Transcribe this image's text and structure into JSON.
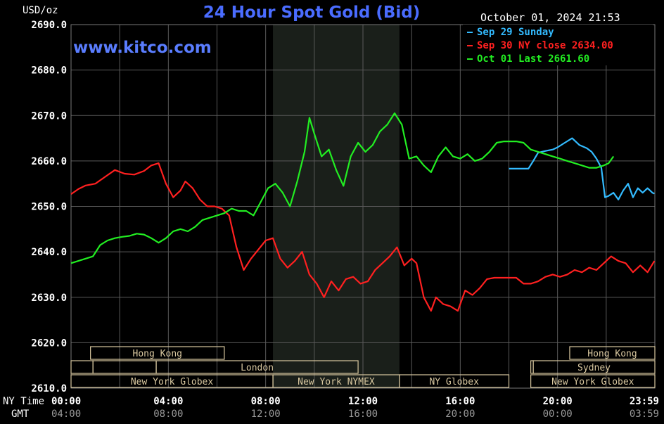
{
  "header": {
    "unit": "USD/oz",
    "title": "24 Hour Spot Gold (Bid)",
    "timestamp": "October 01, 2024 21:53",
    "watermark": "www.kitco.com"
  },
  "footer": {
    "ny_time_label": "NY Time",
    "gmt_label": "GMT"
  },
  "colors": {
    "background": "#000000",
    "plot_bg": "#000000",
    "grid": "#5a5a5a",
    "axis_text": "#ffffff",
    "gmt_text": "#9a9a9a",
    "title": "#4a6cff",
    "watermark": "#5a7dff",
    "timestamp": "#ffffff",
    "shade": "#1a1f1a",
    "session_fill": "#d9c8a0",
    "session_text": "#000000"
  },
  "chart_data": {
    "type": "line",
    "title": "24 Hour Spot Gold (Bid)",
    "ylabel": "USD/oz",
    "ylim": [
      2610,
      2690
    ],
    "xlim": [
      0,
      24
    ],
    "y_ticks": [
      "2690.0",
      "2680.0",
      "2670.0",
      "2660.0",
      "2650.0",
      "2640.0",
      "2630.0",
      "2620.0",
      "2610.0"
    ],
    "y_tick_values": [
      2690,
      2680,
      2670,
      2660,
      2650,
      2640,
      2630,
      2620,
      2610
    ],
    "x_ticks": [
      {
        "ny": "00:00",
        "gmt": "04:00",
        "hour": 0
      },
      {
        "ny": "04:00",
        "gmt": "08:00",
        "hour": 4
      },
      {
        "ny": "08:00",
        "gmt": "12:00",
        "hour": 8
      },
      {
        "ny": "12:00",
        "gmt": "16:00",
        "hour": 12
      },
      {
        "ny": "16:00",
        "gmt": "20:00",
        "hour": 16
      },
      {
        "ny": "20:00",
        "gmt": "00:00",
        "hour": 20
      },
      {
        "ny": "23:59",
        "gmt": "03:59",
        "hour": 23.983
      }
    ],
    "grid": true,
    "legend": "top-right",
    "shaded_hours": [
      8.3,
      13.5
    ],
    "sessions": [
      {
        "label": "Hong Kong",
        "row": 0,
        "start": 0.8,
        "end": 6.3
      },
      {
        "label": "",
        "row": 1,
        "start": 0,
        "end": 0.9
      },
      {
        "label": "",
        "row": 1,
        "start": 0.9,
        "end": 3.5
      },
      {
        "label": "London",
        "row": 1,
        "start": 3.5,
        "end": 11.8
      },
      {
        "label": "New York Globex",
        "row": 2,
        "start": 0,
        "end": 8.3
      },
      {
        "label": "New York NYMEX",
        "row": 2,
        "start": 8.3,
        "end": 13.5
      },
      {
        "label": "NY Globex",
        "row": 2,
        "start": 13.5,
        "end": 18.0
      },
      {
        "label": "Hong Kong",
        "row": 0,
        "start": 20.5,
        "end": 24
      },
      {
        "label": "Sydney",
        "row": 1,
        "start": 19.0,
        "end": 24
      },
      {
        "label": "",
        "row": 1,
        "start": 18.9,
        "end": 19.0
      },
      {
        "label": "New York Globex",
        "row": 2,
        "start": 18.9,
        "end": 24
      }
    ],
    "series": [
      {
        "name": "Sep 29 Sunday",
        "legend_label": "Sep 29 Sunday",
        "color": "#33bbff",
        "x": [
          18.0,
          18.5,
          18.8,
          19.0,
          19.2,
          19.5,
          19.8,
          20.0,
          20.3,
          20.6,
          20.9,
          21.2,
          21.4,
          21.6,
          21.8,
          21.95,
          22.1,
          22.3,
          22.5,
          22.7,
          22.9,
          23.1,
          23.3,
          23.5,
          23.7,
          23.9,
          23.983
        ],
        "values": [
          2658.3,
          2658.3,
          2658.3,
          2660.0,
          2661.8,
          2662.2,
          2662.5,
          2663.0,
          2664.0,
          2665.0,
          2663.5,
          2662.8,
          2662.0,
          2660.5,
          2658.5,
          2652.0,
          2652.3,
          2653.0,
          2651.5,
          2653.5,
          2655.0,
          2652.0,
          2654.0,
          2653.0,
          2654.0,
          2653.0,
          2652.8
        ]
      },
      {
        "name": "Sep 30 NY close 2634.00",
        "legend_label": "Sep 30 NY close 2634.00",
        "color": "#ff2020",
        "x": [
          0.0,
          0.3,
          0.6,
          1.0,
          1.4,
          1.8,
          2.2,
          2.6,
          3.0,
          3.3,
          3.6,
          3.9,
          4.2,
          4.5,
          4.7,
          5.0,
          5.3,
          5.6,
          5.9,
          6.2,
          6.5,
          6.8,
          7.1,
          7.4,
          7.7,
          8.0,
          8.3,
          8.6,
          8.9,
          9.2,
          9.5,
          9.8,
          10.1,
          10.4,
          10.7,
          11.0,
          11.3,
          11.6,
          11.9,
          12.2,
          12.5,
          12.8,
          13.1,
          13.4,
          13.7,
          14.0,
          14.2,
          14.5,
          14.8,
          15.0,
          15.3,
          15.6,
          15.9,
          16.2,
          16.5,
          16.8,
          17.1,
          17.4,
          17.7,
          18.0,
          18.3,
          18.6,
          18.9,
          19.2,
          19.5,
          19.8,
          20.1,
          20.4,
          20.7,
          21.0,
          21.3,
          21.6,
          21.9,
          22.2,
          22.5,
          22.8,
          23.1,
          23.4,
          23.7,
          23.983
        ],
        "values": [
          2652.7,
          2653.8,
          2654.6,
          2655.0,
          2656.5,
          2658.0,
          2657.2,
          2657.0,
          2657.8,
          2659.0,
          2659.5,
          2655.0,
          2652.0,
          2653.5,
          2655.5,
          2654.0,
          2651.5,
          2650.0,
          2650.0,
          2649.5,
          2648.0,
          2641.0,
          2636.0,
          2638.5,
          2640.5,
          2642.5,
          2643.0,
          2638.5,
          2636.5,
          2638.0,
          2640.0,
          2635.0,
          2633.0,
          2630.0,
          2633.5,
          2631.5,
          2634.0,
          2634.5,
          2633.0,
          2633.5,
          2636.0,
          2637.5,
          2639.0,
          2641.0,
          2637.0,
          2638.5,
          2637.5,
          2630.0,
          2627.0,
          2630.0,
          2628.5,
          2628.0,
          2627.0,
          2631.5,
          2630.5,
          2632.0,
          2634.0,
          2634.3,
          2634.3,
          2634.3,
          2634.3,
          2633.0,
          2633.0,
          2633.5,
          2634.5,
          2635.0,
          2634.5,
          2635.0,
          2636.0,
          2635.5,
          2636.5,
          2636.0,
          2637.5,
          2639.0,
          2638.0,
          2637.5,
          2635.5,
          2637.0,
          2635.5,
          2638.0
        ]
      },
      {
        "name": "Oct 01 Last 2661.60",
        "legend_label": "Oct 01 Last 2661.60",
        "color": "#22ee22",
        "x": [
          0.0,
          0.3,
          0.6,
          0.9,
          1.2,
          1.5,
          1.8,
          2.1,
          2.4,
          2.7,
          3.0,
          3.3,
          3.6,
          3.9,
          4.2,
          4.5,
          4.8,
          5.1,
          5.4,
          5.7,
          6.0,
          6.3,
          6.6,
          6.9,
          7.2,
          7.5,
          7.8,
          8.1,
          8.4,
          8.7,
          9.0,
          9.3,
          9.6,
          9.8,
          10.0,
          10.3,
          10.6,
          10.9,
          11.2,
          11.5,
          11.8,
          12.1,
          12.4,
          12.7,
          13.0,
          13.3,
          13.6,
          13.9,
          14.2,
          14.5,
          14.8,
          15.1,
          15.4,
          15.7,
          16.0,
          16.3,
          16.6,
          16.9,
          17.2,
          17.5,
          17.8,
          18.0,
          18.3,
          18.6,
          18.9,
          19.2,
          19.5,
          19.8,
          20.1,
          20.4,
          20.7,
          21.0,
          21.3,
          21.6,
          21.9,
          22.1,
          22.3
        ],
        "values": [
          2637.5,
          2638.0,
          2638.5,
          2639.0,
          2641.5,
          2642.5,
          2643.0,
          2643.3,
          2643.5,
          2644.0,
          2643.8,
          2643.0,
          2642.0,
          2643.0,
          2644.5,
          2645.0,
          2644.5,
          2645.5,
          2647.0,
          2647.5,
          2648.0,
          2648.5,
          2649.5,
          2649.0,
          2649.0,
          2648.0,
          2651.0,
          2654.0,
          2655.0,
          2653.0,
          2650.0,
          2655.5,
          2662.0,
          2669.5,
          2666.0,
          2661.0,
          2662.5,
          2658.0,
          2654.5,
          2661.0,
          2664.0,
          2662.0,
          2663.5,
          2666.5,
          2668.0,
          2670.5,
          2668.0,
          2660.5,
          2661.0,
          2659.0,
          2657.5,
          2661.0,
          2663.0,
          2661.0,
          2660.5,
          2661.5,
          2660.0,
          2660.5,
          2662.0,
          2664.0,
          2664.3,
          2664.3,
          2664.3,
          2664.0,
          2662.5,
          2662.0,
          2661.5,
          2661.0,
          2660.5,
          2660.0,
          2659.5,
          2659.0,
          2658.5,
          2658.5,
          2659.0,
          2659.5,
          2661.0
        ]
      }
    ]
  }
}
